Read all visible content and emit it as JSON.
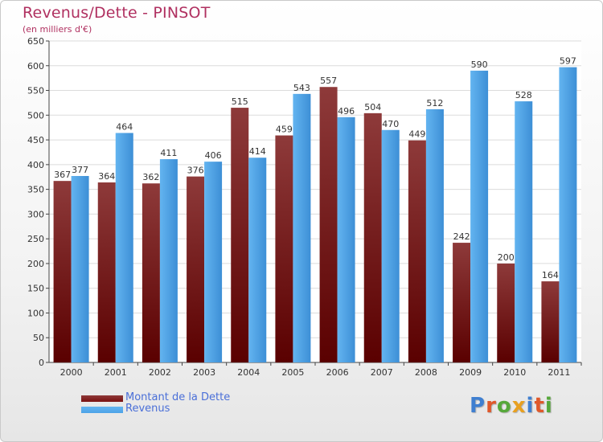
{
  "title": "Revenus/Dette - PINSOT",
  "subtitle": "(en milliers d'€)",
  "brand": {
    "letters": [
      {
        "ch": "P",
        "color": "#3f7fd0"
      },
      {
        "ch": "r",
        "color": "#e0582a"
      },
      {
        "ch": "o",
        "color": "#56a83a"
      },
      {
        "ch": "x",
        "color": "#e8a020"
      },
      {
        "ch": "i",
        "color": "#3f7fd0"
      },
      {
        "ch": "t",
        "color": "#e0582a"
      },
      {
        "ch": "i",
        "color": "#56a83a"
      }
    ]
  },
  "legend": [
    {
      "label": "Montant de la Dette",
      "color": "#7a1010"
    },
    {
      "label": "Revenus",
      "color": "#4da3e8"
    }
  ],
  "chart_data": {
    "type": "bar",
    "categories": [
      "2000",
      "2001",
      "2002",
      "2003",
      "2004",
      "2005",
      "2006",
      "2007",
      "2008",
      "2009",
      "2010",
      "2011"
    ],
    "series": [
      {
        "name": "Montant de la Dette",
        "values": [
          367,
          364,
          362,
          376,
          515,
          459,
          557,
          504,
          449,
          242,
          200,
          164
        ],
        "color": "#7a1010"
      },
      {
        "name": "Revenus",
        "values": [
          377,
          464,
          411,
          406,
          414,
          543,
          496,
          470,
          512,
          590,
          528,
          597
        ],
        "color": "#4da3e8"
      }
    ],
    "ylim": [
      0,
      650
    ],
    "yticks": [
      0,
      50,
      100,
      150,
      200,
      250,
      300,
      350,
      400,
      450,
      500,
      550,
      600,
      650
    ],
    "grid": true,
    "legend_position": "bottom-left"
  }
}
